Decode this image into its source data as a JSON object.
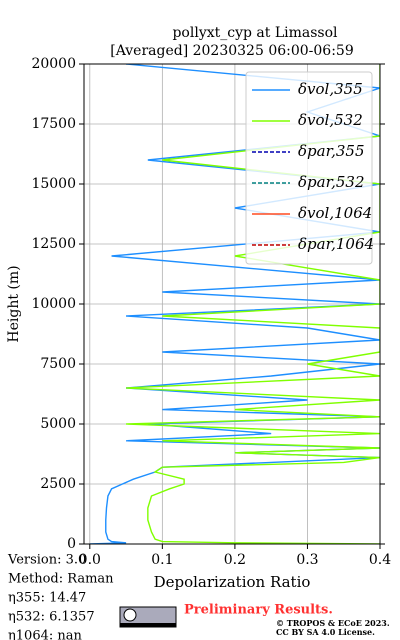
{
  "chart_data": {
    "type": "line",
    "orientation": "vertical-profile",
    "title": "pollyxt_cyp at Limassol",
    "subtitle": "[Averaged] 20230325 06:00-06:59",
    "xlabel": "Depolarization Ratio",
    "ylabel": "Height (m)",
    "xlim": [
      -0.008,
      0.4
    ],
    "xticks": [
      {
        "value": 0,
        "label": "0.0"
      },
      0.1,
      0.2,
      0.3,
      0.4
    ],
    "ylim": [
      0,
      20000
    ],
    "yticks": [
      0,
      2500,
      5000,
      7500,
      10000,
      12500,
      15000,
      17500,
      20000
    ],
    "grid": true,
    "legend": "upper right",
    "y": [
      0,
      50,
      100,
      200,
      500,
      1000,
      1500,
      2000,
      2300,
      2500,
      2700,
      3000,
      3200,
      3400,
      3600,
      3800,
      4000,
      4300,
      4600,
      5000,
      5300,
      5600,
      6000,
      6500,
      7000,
      7500,
      8000,
      8500,
      9000,
      9500,
      10000,
      10500,
      11000,
      12000,
      13000,
      14000,
      15000,
      16000,
      17000,
      18000,
      19000,
      20000
    ],
    "series": [
      {
        "name": "δvol,355",
        "color": "#1e8fff",
        "dash": false,
        "values": [
          0.0,
          0.05,
          0.03,
          0.025,
          0.022,
          0.022,
          0.023,
          0.025,
          0.03,
          0.045,
          0.06,
          0.09,
          0.1,
          0.25,
          0.4,
          0.2,
          0.4,
          0.05,
          0.25,
          0.08,
          0.4,
          0.1,
          0.3,
          0.05,
          0.25,
          0.4,
          0.1,
          0.4,
          0.3,
          0.05,
          0.4,
          0.1,
          0.4,
          0.03,
          0.4,
          0.2,
          0.4,
          0.08,
          0.4,
          0.3,
          0.4,
          0.05
        ]
      },
      {
        "name": "δvol,532",
        "color": "#80ff00",
        "dash": false,
        "values": [
          0.4,
          0.2,
          0.1,
          0.09,
          0.085,
          0.08,
          0.08,
          0.085,
          0.11,
          0.13,
          0.13,
          0.09,
          0.1,
          0.35,
          0.4,
          0.2,
          0.4,
          0.1,
          0.4,
          0.05,
          0.4,
          0.2,
          0.4,
          0.05,
          0.4,
          0.3,
          0.4,
          0.4,
          0.4,
          0.1,
          0.4,
          0.4,
          0.4,
          0.2,
          0.4,
          0.4,
          0.4,
          0.1,
          0.4,
          0.4,
          0.4,
          0.4
        ]
      },
      {
        "name": "δpar,355",
        "color": "#0000b0",
        "dash": true,
        "values": [
          null,
          null,
          null,
          null,
          null,
          null,
          null,
          null,
          null,
          null,
          null,
          null,
          null,
          null,
          null,
          null,
          null,
          null,
          null,
          null,
          null,
          null,
          null,
          null,
          null,
          null,
          null,
          null,
          null,
          null,
          null,
          null,
          null,
          null,
          null,
          null,
          null,
          null,
          null,
          null,
          null,
          null
        ]
      },
      {
        "name": "δpar,532",
        "color": "#008080",
        "dash": true,
        "values": [
          null,
          null,
          null,
          null,
          null,
          null,
          null,
          null,
          null,
          null,
          null,
          null,
          null,
          null,
          null,
          null,
          null,
          null,
          null,
          null,
          null,
          null,
          null,
          null,
          null,
          null,
          null,
          null,
          null,
          null,
          null,
          null,
          null,
          null,
          null,
          null,
          null,
          null,
          null,
          null,
          null,
          null
        ]
      },
      {
        "name": "δvol,1064",
        "color": "#ff4b20",
        "dash": false,
        "values": [
          null,
          null,
          null,
          null,
          null,
          null,
          null,
          null,
          null,
          null,
          null,
          null,
          null,
          null,
          null,
          null,
          null,
          null,
          null,
          null,
          null,
          null,
          null,
          null,
          null,
          null,
          null,
          null,
          null,
          null,
          null,
          null,
          null,
          null,
          null,
          null,
          null,
          null,
          null,
          null,
          null,
          null
        ]
      },
      {
        "name": "δpar,1064",
        "color": "#c00000",
        "dash": true,
        "values": [
          null,
          null,
          null,
          null,
          null,
          null,
          null,
          null,
          null,
          null,
          null,
          null,
          null,
          null,
          null,
          null,
          null,
          null,
          null,
          null,
          null,
          null,
          null,
          null,
          null,
          null,
          null,
          null,
          null,
          null,
          null,
          null,
          null,
          null,
          null,
          null,
          null,
          null,
          null,
          null,
          null,
          null
        ]
      }
    ],
    "annotations": [
      "Version: 3.0",
      "Method: Raman",
      "η355:  14.47",
      "η532: 6.1357",
      "η1064:    nan"
    ],
    "notice": "Preliminary Results.",
    "copyright": [
      "© TROPOS & ECoE 2023.",
      "CC BY SA 4.0 License."
    ]
  }
}
